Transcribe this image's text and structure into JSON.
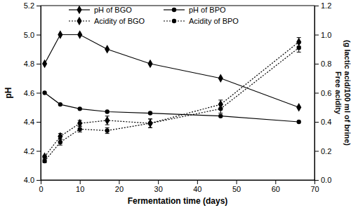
{
  "chart_data": {
    "type": "line",
    "x_label": "Fermentation time (days)",
    "y_label": "pH",
    "y2_label": [
      "Free acidity",
      "(g lactic acid/100 ml of brine)"
    ],
    "x": [
      1,
      5,
      10,
      17,
      28,
      46,
      66
    ],
    "xlim": [
      0,
      70
    ],
    "xticks": [
      0,
      10,
      20,
      30,
      40,
      50,
      60,
      70
    ],
    "ylim": [
      4,
      5.2
    ],
    "yticks": [
      {
        "value": 4,
        "label": "4.0"
      },
      4.2,
      4.4,
      4.6,
      4.8,
      {
        "value": 5,
        "label": "5.0"
      },
      5.2
    ],
    "y2lim": [
      0,
      1.2
    ],
    "y2ticks": [
      {
        "value": 0,
        "label": "0.0"
      },
      0.2,
      0.4,
      0.6,
      0.8,
      {
        "value": 1,
        "label": "1.0"
      },
      1.2
    ],
    "legend": "top",
    "series": [
      {
        "name": "pH of BGO",
        "color": "#000000",
        "marker": "diamond",
        "line_style": "solid",
        "values": [
          4.8,
          5.0,
          5.0,
          4.9,
          4.8,
          4.7,
          4.5
        ]
      },
      {
        "name": "pH of BPO",
        "color": "#000000",
        "marker": "circle",
        "line_style": "solid",
        "values": [
          4.6,
          4.52,
          4.49,
          4.47,
          4.46,
          4.44,
          4.4
        ]
      },
      {
        "name": "Acidity of BGO",
        "color": "#000000",
        "marker": "diamond",
        "line_style": "dotted",
        "axis": "y2",
        "values": [
          0.16,
          0.3,
          0.39,
          0.41,
          0.39,
          0.52,
          0.95
        ],
        "errors": [
          0.01,
          0.02,
          0.02,
          0.03,
          0.03,
          0.03,
          0.03
        ]
      },
      {
        "name": "Acidity of BPO",
        "color": "#000000",
        "marker": "circle",
        "line_style": "dotted",
        "axis": "y2",
        "values": [
          0.13,
          0.26,
          0.35,
          0.34,
          0.39,
          0.49,
          0.91
        ],
        "errors": [
          0.01,
          0.02,
          0.02,
          0.02,
          0.03,
          0.03,
          0.03
        ]
      }
    ]
  }
}
